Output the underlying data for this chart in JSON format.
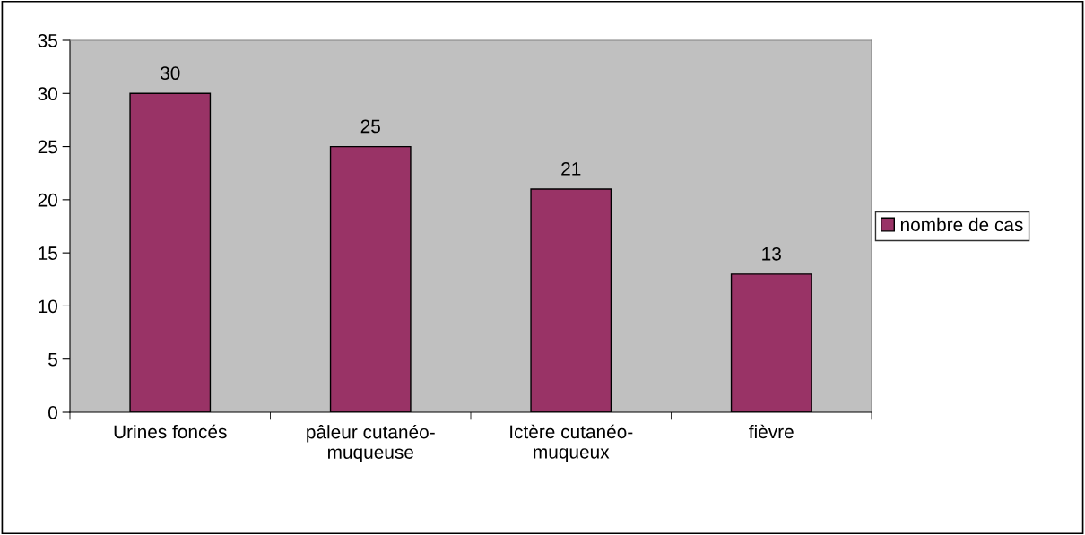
{
  "chart_data": {
    "type": "bar",
    "categories": [
      "Urines foncés",
      "pâleur cutanéo-\nmuqueuse",
      "Ictère cutanéo-\nmuqueux",
      "fièvre"
    ],
    "series": [
      {
        "name": "nombre de cas",
        "color": "#993366",
        "values": [
          30,
          25,
          21,
          13
        ]
      }
    ],
    "ylim": [
      0,
      35
    ],
    "yticks": [
      0,
      5,
      10,
      15,
      20,
      25,
      30,
      35
    ],
    "data_labels": true,
    "grid": false,
    "legend": "right"
  }
}
